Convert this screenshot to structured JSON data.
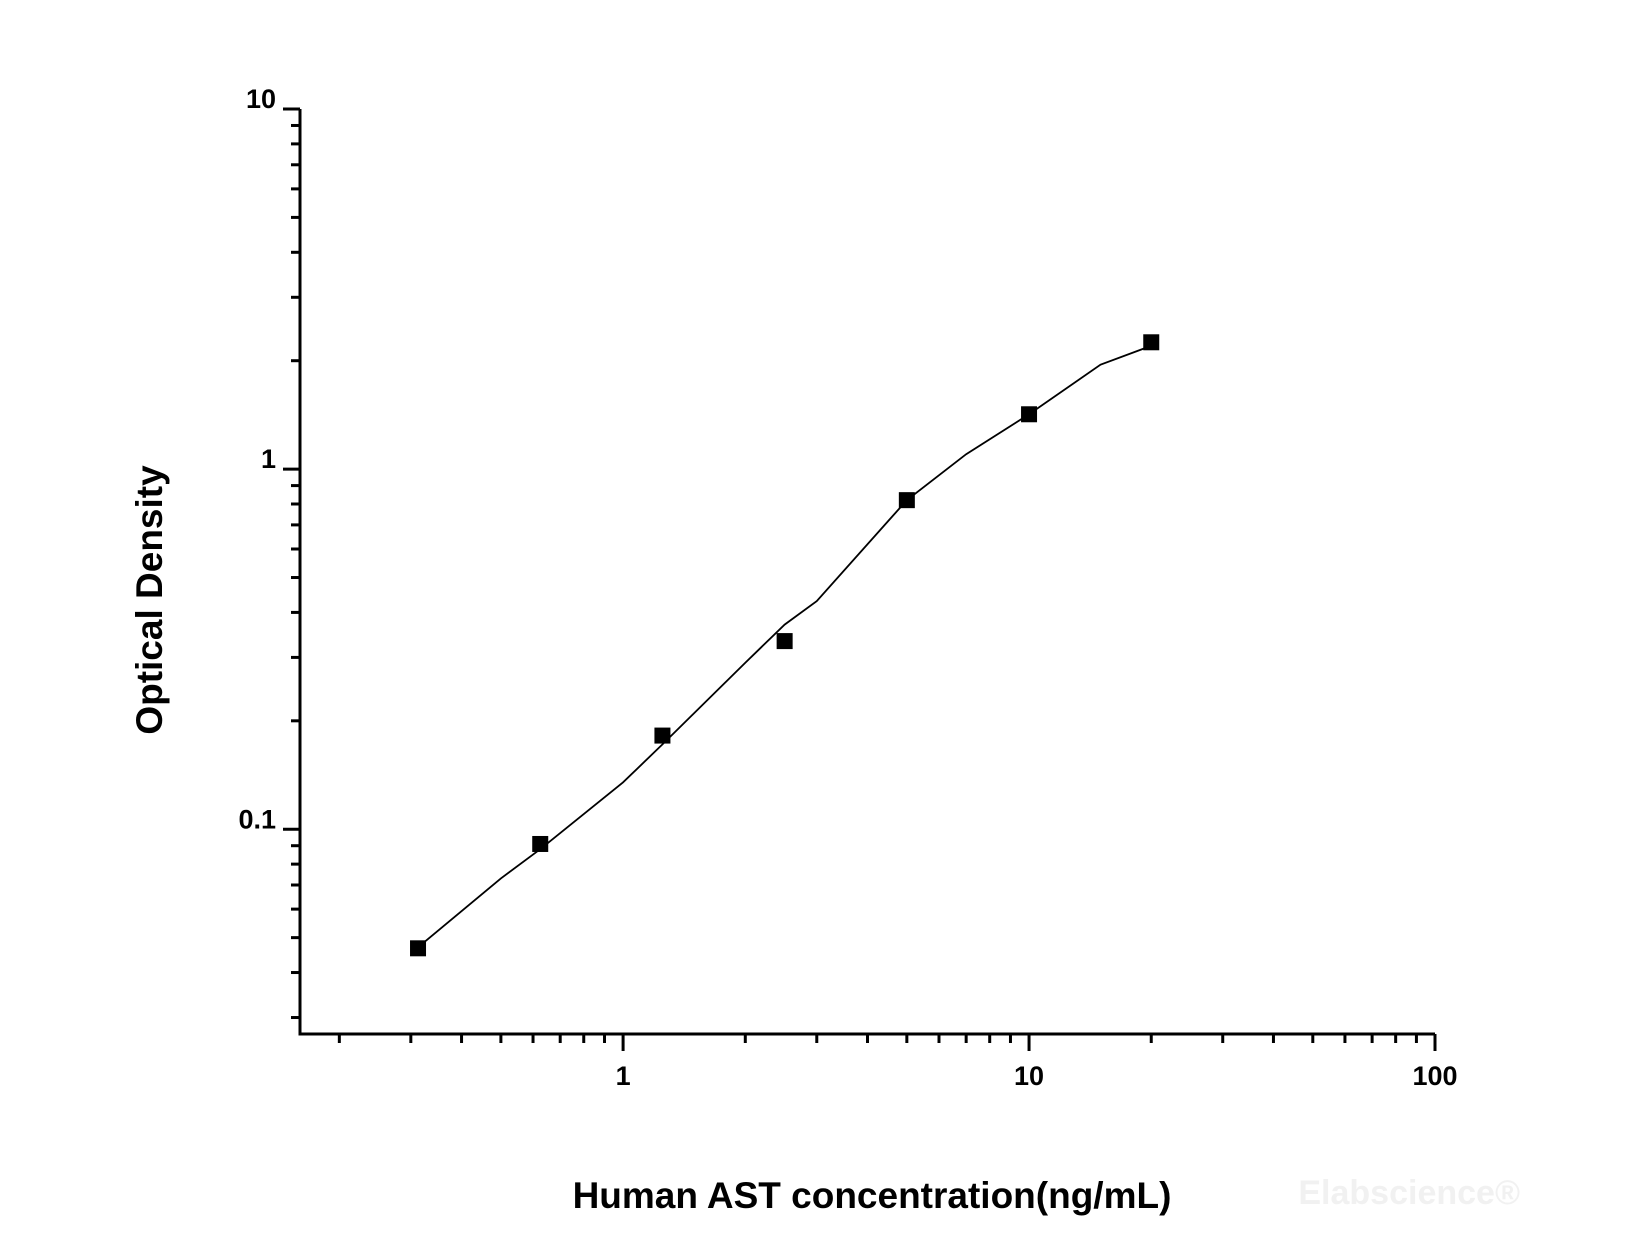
{
  "chart_data": {
    "type": "scatter",
    "xlabel": "Human AST concentration(ng/mL)",
    "ylabel": "Optical Density",
    "watermark": "Elabscience®",
    "xscale": "log",
    "yscale": "log",
    "xlim": [
      0.16,
      100
    ],
    "ylim": [
      0.027,
      10
    ],
    "xticks": [
      1,
      10,
      100
    ],
    "yticks": [
      0.1,
      1,
      10
    ],
    "x_minor_ticks": [
      0.2,
      0.3,
      0.4,
      0.5,
      0.6,
      0.7,
      0.8,
      0.9,
      2,
      3,
      4,
      5,
      6,
      7,
      8,
      9,
      20,
      30,
      40,
      50,
      60,
      70,
      80,
      90
    ],
    "y_minor_ticks": [
      0.03,
      0.04,
      0.05,
      0.06,
      0.07,
      0.08,
      0.09,
      0.2,
      0.3,
      0.4,
      0.5,
      0.6,
      0.7,
      0.8,
      0.9,
      2,
      3,
      4,
      5,
      6,
      7,
      8,
      9
    ],
    "x": [
      0.3125,
      0.625,
      1.25,
      2.5,
      5,
      10,
      20
    ],
    "values": [
      0.0467,
      0.091,
      0.182,
      0.333,
      0.82,
      1.42,
      2.25
    ],
    "color": "#000000",
    "fit": {
      "color": "#000000",
      "x": [
        0.3125,
        0.5,
        0.625,
        1,
        1.25,
        2,
        2.5,
        3,
        5,
        7,
        10,
        15,
        20
      ],
      "values": [
        0.047,
        0.073,
        0.088,
        0.135,
        0.172,
        0.29,
        0.37,
        0.43,
        0.82,
        1.1,
        1.42,
        1.95,
        2.2
      ]
    }
  }
}
